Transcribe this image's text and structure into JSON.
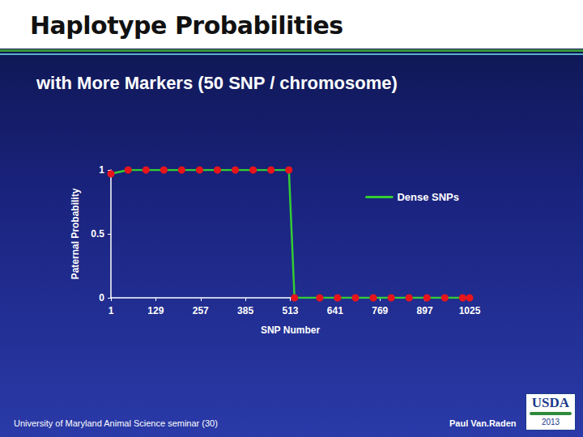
{
  "header": {
    "title": "Haplotype Probabilities",
    "subtitle": "with More Markers (50 SNP / chromosome)"
  },
  "footer": {
    "left": "University of Maryland Animal Science seminar (30)",
    "right": "Paul Van.Raden",
    "logo": "USDA",
    "year": "2013"
  },
  "chart_data": {
    "type": "line",
    "x_label": "SNP Number",
    "y_label": "Paternal Probability",
    "x": [
      1,
      50,
      101,
      152,
      203,
      254,
      305,
      356,
      407,
      458,
      509,
      525,
      597,
      648,
      699,
      750,
      801,
      852,
      903,
      954,
      1005,
      1025
    ],
    "series": [
      {
        "name": "Dense SNPs",
        "color": "#33cc33",
        "marker": "circle",
        "colors": [
          "#e8141c",
          "#e8141c",
          "#e8141c",
          "#e8141c",
          "#e8141c",
          "#e8141c",
          "#e8141c",
          "#e8141c",
          "#e8141c",
          "#e8141c",
          "#e8141c",
          "#e8141c",
          "#e8141c",
          "#e8141c",
          "#e8141c",
          "#e8141c",
          "#e8141c",
          "#e8141c",
          "#e8141c",
          "#e8141c",
          "#e8141c",
          "#e8141c"
        ],
        "values": [
          0.97,
          1,
          1,
          1,
          1,
          1,
          1,
          1,
          1,
          1,
          1,
          0,
          0,
          0,
          0,
          0,
          0,
          0,
          0,
          0,
          0,
          0
        ]
      }
    ],
    "xlim": [
      1,
      1025
    ],
    "xticks": [
      1,
      129,
      257,
      385,
      513,
      641,
      769,
      897,
      1025
    ],
    "ylim": [
      0,
      1
    ],
    "yticks": [
      0,
      0.5,
      1
    ],
    "grid": false,
    "legend": "upper right"
  }
}
